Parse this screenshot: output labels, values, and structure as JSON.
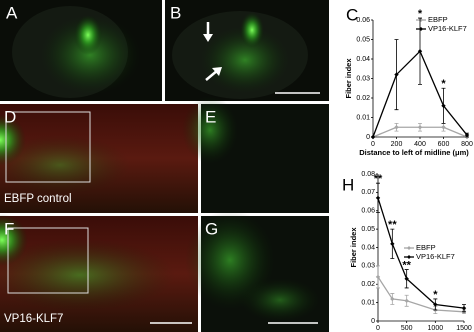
{
  "figure": {
    "panel_labels": [
      "A",
      "B",
      "D",
      "E",
      "F",
      "G"
    ],
    "image_captions": [
      "EBFP control",
      "VP16-KLF7"
    ]
  },
  "chart_data": [
    {
      "type": "line",
      "panel_label": "C",
      "x_label": "Distance to left of midline (μm)",
      "y_label": "Fiber index",
      "x": [
        0,
        200,
        400,
        600,
        800
      ],
      "xlim": [
        0,
        800
      ],
      "xticks": [
        0,
        200,
        400,
        600,
        800
      ],
      "ylim": [
        0,
        0.06
      ],
      "yticks": [
        0,
        0.01,
        0.02,
        0.03,
        0.04,
        0.05,
        0.06
      ],
      "legend": "upper right",
      "series": [
        {
          "name": "EBFP",
          "color": "#a6a6a6",
          "values": [
            0,
            0.005,
            0.005,
            0.005,
            0
          ],
          "errors": [
            0,
            0.002,
            0.002,
            0.002,
            0
          ]
        },
        {
          "name": "VP16-KLF7",
          "color": "#000000",
          "values": [
            0,
            0.032,
            0.044,
            0.016,
            0.001
          ],
          "errors": [
            0,
            0.018,
            0.017,
            0.009,
            0.001
          ]
        }
      ],
      "annotations": [
        {
          "text": "*",
          "x": 400
        },
        {
          "text": "*",
          "x": 600
        }
      ]
    },
    {
      "type": "line",
      "panel_label": "H",
      "x_label": "Distance from injury (μm)",
      "y_label": "Fiber index",
      "x": [
        0,
        250,
        500,
        1000,
        1500
      ],
      "xlim": [
        0,
        1500
      ],
      "xticks": [
        0,
        500,
        1000,
        1500
      ],
      "ylim": [
        0,
        0.08
      ],
      "yticks": [
        0,
        0.01,
        0.02,
        0.03,
        0.04,
        0.05,
        0.06,
        0.07,
        0.08
      ],
      "legend": "center right",
      "series": [
        {
          "name": "EBFP",
          "color": "#a6a6a6",
          "values": [
            0.024,
            0.012,
            0.011,
            0.006,
            0.005
          ],
          "errors": [
            0.006,
            0.003,
            0.003,
            0.002,
            0.001
          ]
        },
        {
          "name": "VP16-KLF7",
          "color": "#000000",
          "values": [
            0.067,
            0.042,
            0.023,
            0.009,
            0.007
          ],
          "errors": [
            0.008,
            0.008,
            0.005,
            0.003,
            0.002
          ]
        }
      ],
      "annotations": [
        {
          "text": "**",
          "x": 0
        },
        {
          "text": "**",
          "x": 250
        },
        {
          "text": "**",
          "x": 500
        },
        {
          "text": "*",
          "x": 1000
        }
      ]
    }
  ]
}
